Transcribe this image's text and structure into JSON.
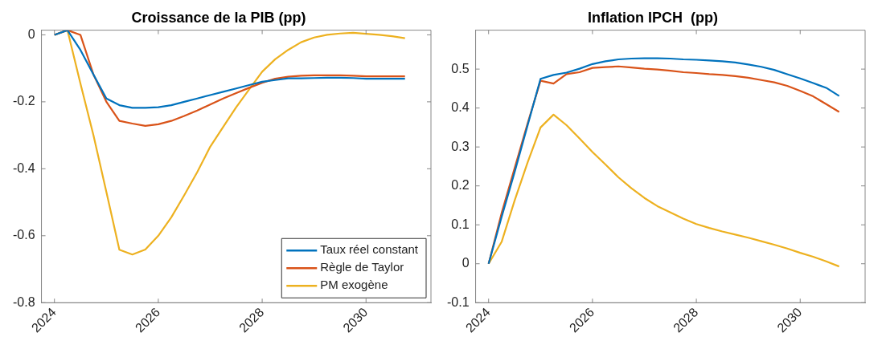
{
  "chart_data": [
    {
      "type": "line",
      "title": "Croissance de la PIB (pp)",
      "x": [
        2024,
        2024.25,
        2024.5,
        2024.75,
        2025,
        2025.25,
        2025.5,
        2025.75,
        2026,
        2026.25,
        2026.5,
        2026.75,
        2027,
        2027.25,
        2027.5,
        2027.75,
        2028,
        2028.25,
        2028.5,
        2028.75,
        2029,
        2029.25,
        2029.5,
        2029.75,
        2030,
        2030.25,
        2030.5,
        2030.75
      ],
      "series": [
        {
          "name": "Taux réel constant",
          "color": "#0072bd",
          "values": [
            0,
            0.014,
            -0.045,
            -0.118,
            -0.19,
            -0.21,
            -0.218,
            -0.218,
            -0.216,
            -0.21,
            -0.2,
            -0.19,
            -0.18,
            -0.17,
            -0.16,
            -0.15,
            -0.14,
            -0.135,
            -0.13,
            -0.13,
            -0.129,
            -0.128,
            -0.128,
            -0.129,
            -0.131,
            -0.131,
            -0.131,
            -0.131
          ]
        },
        {
          "name": "Règle de Taylor",
          "color": "#d95319",
          "values": [
            0,
            0.014,
            0,
            -0.118,
            -0.2,
            -0.257,
            -0.265,
            -0.272,
            -0.267,
            -0.257,
            -0.242,
            -0.226,
            -0.208,
            -0.19,
            -0.174,
            -0.158,
            -0.143,
            -0.131,
            -0.125,
            -0.122,
            -0.121,
            -0.121,
            -0.121,
            -0.122,
            -0.124,
            -0.124,
            -0.124,
            -0.124
          ]
        },
        {
          "name": "PM exogène",
          "color": "#edb120",
          "values": [
            0,
            0.014,
            -0.145,
            -0.299,
            -0.469,
            -0.642,
            -0.656,
            -0.641,
            -0.6,
            -0.545,
            -0.479,
            -0.41,
            -0.334,
            -0.275,
            -0.216,
            -0.163,
            -0.11,
            -0.073,
            -0.045,
            -0.022,
            -0.008,
            0,
            0.004,
            0.006,
            0.003,
            0,
            -0.004,
            -0.01
          ]
        }
      ],
      "xlim": [
        2023.75,
        2031.25
      ],
      "xticks": [
        2024,
        2026,
        2028,
        2030
      ],
      "ylim": [
        -0.8,
        0.014
      ],
      "yticks": [
        -0.8,
        -0.6,
        -0.4,
        -0.2,
        0
      ],
      "grid": false,
      "legend": "bottom right"
    },
    {
      "type": "line",
      "title": "Inflation IPCH  (pp)",
      "x": [
        2024,
        2024.25,
        2024.5,
        2024.75,
        2025,
        2025.25,
        2025.5,
        2025.75,
        2026,
        2026.25,
        2026.5,
        2026.75,
        2027,
        2027.25,
        2027.5,
        2027.75,
        2028,
        2028.25,
        2028.5,
        2028.75,
        2029,
        2029.25,
        2029.5,
        2029.75,
        2030,
        2030.25,
        2030.5,
        2030.75
      ],
      "series": [
        {
          "color": "#0072bd",
          "values": [
            0,
            0.12,
            0.235,
            0.355,
            0.475,
            0.485,
            0.491,
            0.501,
            0.513,
            0.52,
            0.525,
            0.527,
            0.528,
            0.528,
            0.527,
            0.525,
            0.524,
            0.522,
            0.52,
            0.517,
            0.512,
            0.506,
            0.498,
            0.487,
            0.476,
            0.464,
            0.452,
            0.431
          ]
        },
        {
          "color": "#d95319",
          "values": [
            0,
            0.13,
            0.245,
            0.36,
            0.47,
            0.463,
            0.487,
            0.492,
            0.503,
            0.505,
            0.507,
            0.504,
            0.501,
            0.499,
            0.496,
            0.492,
            0.49,
            0.487,
            0.485,
            0.482,
            0.478,
            0.472,
            0.466,
            0.457,
            0.444,
            0.43,
            0.41,
            0.39
          ]
        },
        {
          "color": "#edb120",
          "values": [
            0,
            0.056,
            0.162,
            0.26,
            0.35,
            0.383,
            0.356,
            0.322,
            0.287,
            0.255,
            0.222,
            0.194,
            0.169,
            0.148,
            0.132,
            0.116,
            0.102,
            0.092,
            0.083,
            0.075,
            0.067,
            0.058,
            0.049,
            0.039,
            0.028,
            0.018,
            0.006,
            -0.007
          ]
        }
      ],
      "xlim": [
        2023.75,
        2031.25
      ],
      "xticks": [
        2024,
        2026,
        2028,
        2030
      ],
      "ylim": [
        -0.1,
        0.6
      ],
      "yticks": [
        -0.1,
        0,
        0.1,
        0.2,
        0.3,
        0.4,
        0.5
      ],
      "grid": false,
      "legend": false
    }
  ]
}
